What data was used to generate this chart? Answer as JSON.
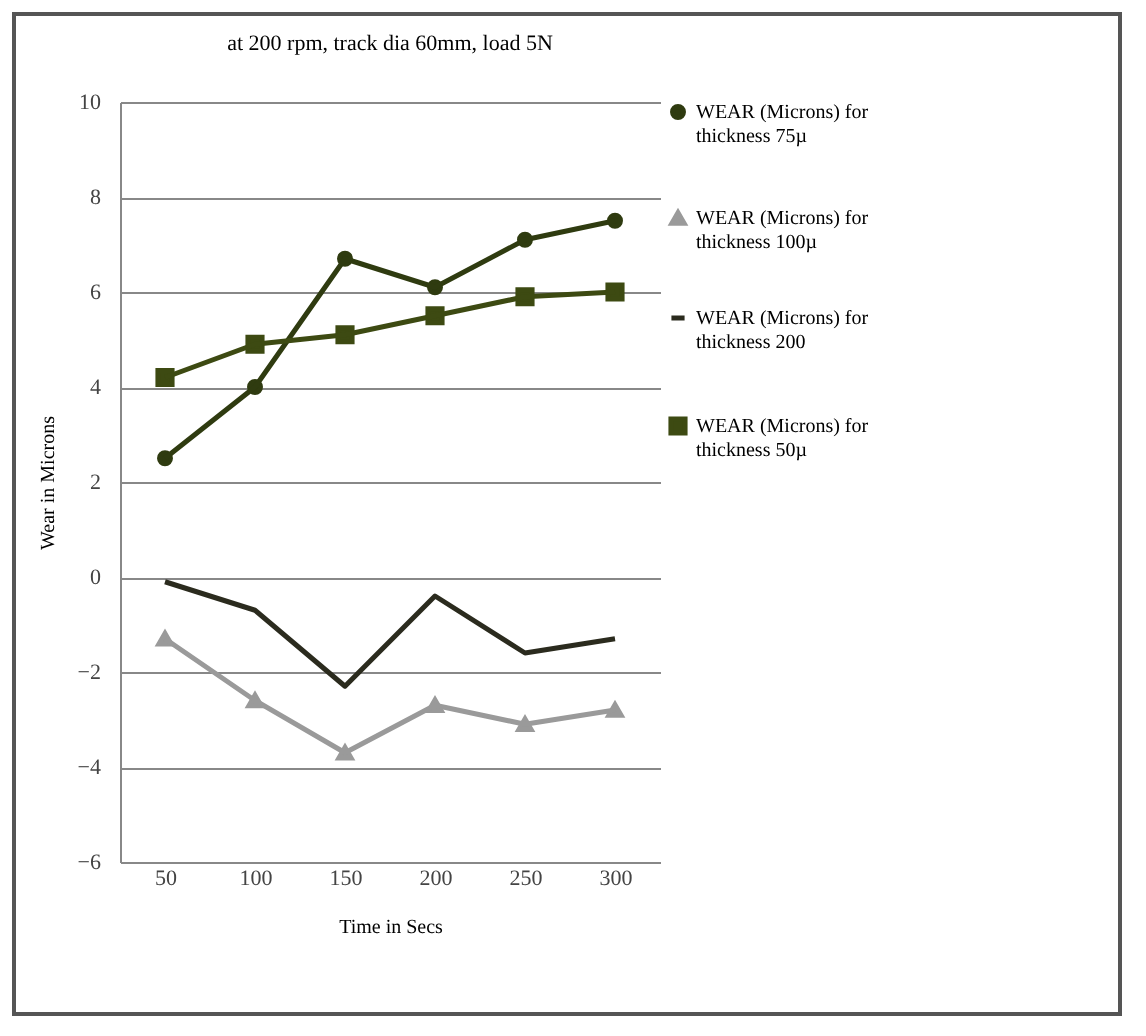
{
  "chart_data": {
    "type": "line",
    "title": "at 200 rpm, track dia 60mm, load 5N",
    "xlabel": "Time in Secs",
    "ylabel": "Wear in Microns",
    "categories": [
      "50",
      "100",
      "150",
      "200",
      "250",
      "300"
    ],
    "series": [
      {
        "name": "WEAR (Microns) for thickness 75µ",
        "color": "#2f3b10",
        "marker": "circle",
        "values": [
          2.5,
          4.0,
          6.7,
          6.1,
          7.1,
          7.5
        ]
      },
      {
        "name": "WEAR (Microns) for thickness 100µ",
        "color": "#9a9a9a",
        "marker": "triangle",
        "values": [
          -1.3,
          -2.6,
          -3.7,
          -2.7,
          -3.1,
          -2.8
        ]
      },
      {
        "name": "WEAR (Microns) for thickness 200",
        "color": "#2b2b1e",
        "marker": "none",
        "values": [
          -0.1,
          -0.7,
          -2.3,
          -0.4,
          -1.6,
          -1.3
        ]
      },
      {
        "name": "WEAR (Microns) for thickness 50µ",
        "color": "#3d4a12",
        "marker": "square",
        "values": [
          4.2,
          4.9,
          5.1,
          5.5,
          5.9,
          6.0
        ]
      }
    ],
    "ylim": [
      -6,
      10
    ],
    "yticks": [
      -6,
      -4,
      -2,
      0,
      2,
      4,
      6,
      8,
      10
    ],
    "grid": "y",
    "legend": "right"
  }
}
